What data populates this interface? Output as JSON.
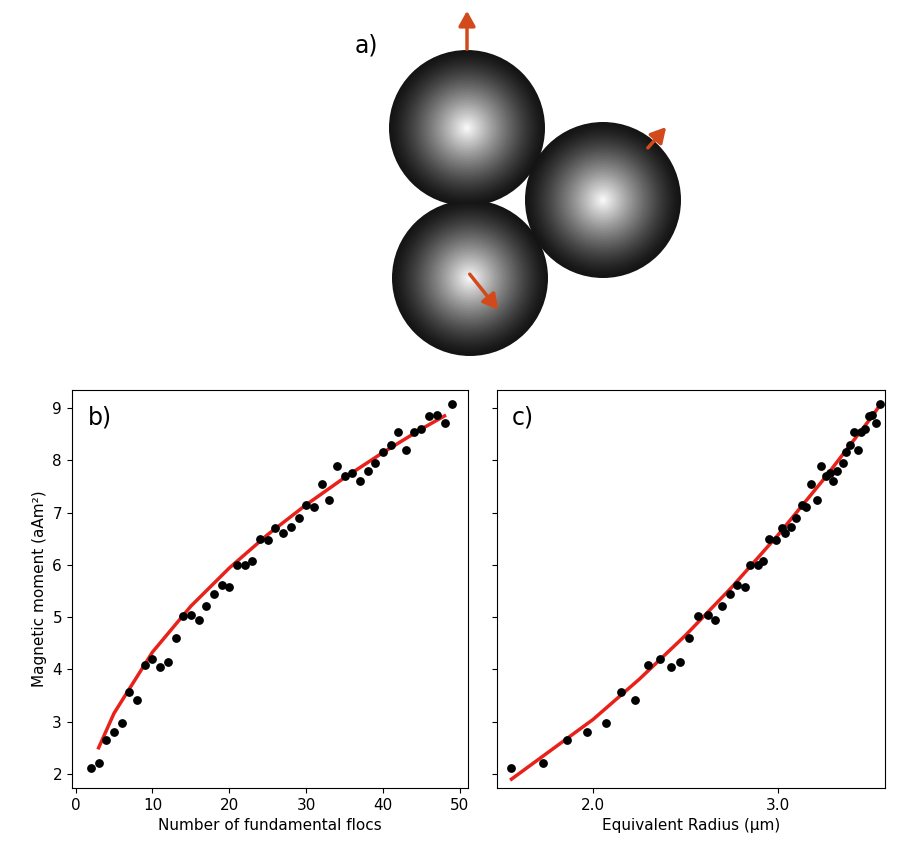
{
  "diagram": {
    "label": "a)"
  },
  "chart_data": [
    {
      "type": "scatter",
      "annotations": [
        "b)"
      ],
      "x_label": "Number of fundamental flocs",
      "y_label": "Magnetic moment (aAm²)",
      "xlim": [
        -0.5,
        51
      ],
      "xticks": [
        0,
        10,
        20,
        30,
        40,
        50
      ],
      "ylim": [
        1.73,
        9.35
      ],
      "yticks": [
        2,
        3,
        4,
        5,
        6,
        7,
        8,
        9
      ],
      "series": [
        {
          "type": "scatter",
          "color": "#000000",
          "marker": "o",
          "x": [
            2,
            3,
            4,
            5,
            6,
            7,
            8,
            9,
            10,
            11,
            12,
            13,
            14,
            15,
            16,
            17,
            18,
            19,
            20,
            21,
            22,
            23,
            24,
            25,
            26,
            27,
            28,
            29,
            30,
            31,
            32,
            33,
            34,
            35,
            36,
            37,
            38,
            39,
            40,
            41,
            42,
            43,
            44,
            45,
            46,
            47,
            48,
            49
          ],
          "values": [
            2.12,
            2.2,
            2.65,
            2.8,
            2.98,
            3.57,
            3.42,
            4.08,
            4.2,
            4.05,
            4.15,
            4.6,
            5.03,
            5.05,
            4.95,
            5.22,
            5.45,
            5.62,
            5.57,
            6.0,
            6.0,
            6.07,
            6.5,
            6.48,
            6.7,
            6.6,
            6.72,
            6.9,
            7.15,
            7.1,
            7.55,
            7.25,
            7.9,
            7.7,
            7.75,
            7.6,
            7.8,
            7.95,
            8.15,
            8.3,
            8.55,
            8.2,
            8.55,
            8.6,
            8.85,
            8.87,
            8.72,
            9.07
          ]
        },
        {
          "type": "line",
          "color": "#e8221b",
          "line_style": "solid",
          "x": [
            3,
            5,
            10,
            15,
            20,
            25,
            30,
            35,
            40,
            45,
            48
          ],
          "values": [
            2.5,
            3.16,
            4.33,
            5.21,
            5.94,
            6.58,
            7.15,
            7.67,
            8.15,
            8.6,
            8.85
          ]
        }
      ]
    },
    {
      "type": "scatter",
      "annotations": [
        "c)"
      ],
      "x_label": "Equivalent Radius (µm)",
      "xlim": [
        1.48,
        3.58
      ],
      "xticks": [
        {
          "value": 2.0,
          "label": "2.0"
        },
        {
          "value": 3.0,
          "label": "3.0"
        }
      ],
      "ylim": [
        1.73,
        9.35
      ],
      "yticks": [
        2,
        3,
        4,
        5,
        6,
        7,
        8,
        9
      ],
      "tick_labels": "x",
      "series": [
        {
          "type": "scatter",
          "color": "#000000",
          "marker": "o",
          "x": [
            1.56,
            1.73,
            1.86,
            1.97,
            2.07,
            2.15,
            2.23,
            2.3,
            2.36,
            2.42,
            2.47,
            2.52,
            2.57,
            2.62,
            2.66,
            2.7,
            2.74,
            2.78,
            2.82,
            2.85,
            2.89,
            2.92,
            2.95,
            2.99,
            3.02,
            3.04,
            3.07,
            3.1,
            3.13,
            3.15,
            3.18,
            3.21,
            3.23,
            3.26,
            3.28,
            3.3,
            3.32,
            3.35,
            3.37,
            3.39,
            3.41,
            3.43,
            3.45,
            3.47,
            3.49,
            3.51,
            3.53,
            3.55
          ],
          "values": [
            2.12,
            2.2,
            2.65,
            2.8,
            2.98,
            3.57,
            3.42,
            4.08,
            4.2,
            4.05,
            4.15,
            4.6,
            5.03,
            5.05,
            4.95,
            5.22,
            5.45,
            5.62,
            5.57,
            6.0,
            6.0,
            6.07,
            6.5,
            6.48,
            6.7,
            6.6,
            6.72,
            6.9,
            7.15,
            7.1,
            7.55,
            7.25,
            7.9,
            7.7,
            7.75,
            7.6,
            7.8,
            7.95,
            8.15,
            8.3,
            8.55,
            8.2,
            8.55,
            8.6,
            8.85,
            8.87,
            8.72,
            9.07
          ]
        },
        {
          "type": "line",
          "color": "#e8221b",
          "line_style": "solid",
          "x": [
            1.56,
            2.0,
            2.25,
            2.5,
            2.75,
            3.0,
            3.25,
            3.5,
            3.55
          ],
          "values": [
            1.9,
            3.04,
            3.81,
            4.65,
            5.57,
            6.57,
            7.65,
            8.8,
            9.05
          ]
        }
      ]
    }
  ]
}
